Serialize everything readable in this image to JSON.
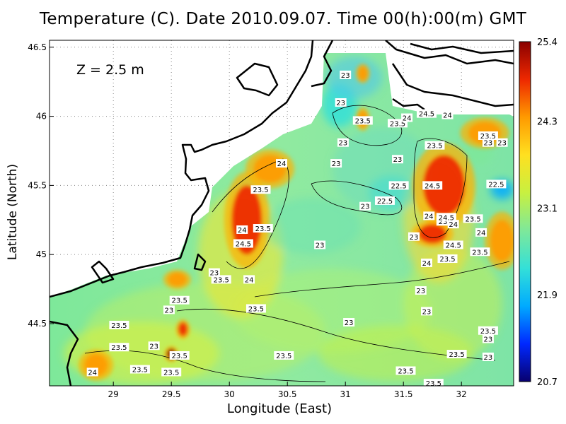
{
  "title": "Temperature (C). Date 2010.09.07. Time 00(h):00(m) GMT",
  "depth_label": "Z = 2.5 m",
  "chart_data": {
    "type": "heatmap",
    "title": "Temperature (C). Date 2010.09.07. Time 00(h):00(m) GMT",
    "xlabel": "Longitude (East)",
    "ylabel": "Latitude (North)",
    "xlim": [
      28.45,
      32.45
    ],
    "ylim": [
      44.05,
      46.55
    ],
    "x_ticks": [
      "29",
      "29.5",
      "30",
      "30.5",
      "31",
      "31.5",
      "32"
    ],
    "x_tick_values": [
      29,
      29.5,
      30,
      30.5,
      31,
      31.5,
      32
    ],
    "y_ticks": [
      "44.5",
      "45",
      "45.5",
      "46",
      "46.5"
    ],
    "y_tick_values": [
      44.5,
      45,
      45.5,
      46,
      46.5
    ],
    "grid": true,
    "colorbar": {
      "labels": [
        "25.4",
        "24.3",
        "23.1",
        "21.9",
        "20.7"
      ],
      "values": [
        25.4,
        24.3,
        23.1,
        21.9,
        20.7
      ],
      "min": 20.7,
      "max": 25.4,
      "colors": [
        "#08006e",
        "#0028ff",
        "#00aaff",
        "#33e0d8",
        "#7ee89a",
        "#c8f040",
        "#ffe020",
        "#ff9a00",
        "#ee2800",
        "#8a0000"
      ]
    },
    "warm_patches": [
      {
        "lon": 31.85,
        "lat": 45.5,
        "value": 24.8,
        "rx": 0.18,
        "ry": 0.22
      },
      {
        "lon": 30.15,
        "lat": 45.25,
        "value": 24.7,
        "rx": 0.13,
        "ry": 0.25
      },
      {
        "lon": 31.75,
        "lat": 45.15,
        "value": 25.0,
        "rx": 0.12,
        "ry": 0.07
      },
      {
        "lon": 30.35,
        "lat": 45.62,
        "value": 24.3,
        "rx": 0.14,
        "ry": 0.1
      },
      {
        "lon": 32.35,
        "lat": 45.1,
        "value": 24.5,
        "rx": 0.1,
        "ry": 0.15
      },
      {
        "lon": 29.6,
        "lat": 44.46,
        "value": 25.1,
        "rx": 0.04,
        "ry": 0.05
      },
      {
        "lon": 29.5,
        "lat": 44.28,
        "value": 25.2,
        "rx": 0.04,
        "ry": 0.04
      },
      {
        "lon": 28.85,
        "lat": 44.2,
        "value": 24.6,
        "rx": 0.1,
        "ry": 0.08
      },
      {
        "lon": 31.15,
        "lat": 45.98,
        "value": 24.6,
        "rx": 0.04,
        "ry": 0.06
      },
      {
        "lon": 31.15,
        "lat": 46.31,
        "value": 24.4,
        "rx": 0.04,
        "ry": 0.05
      },
      {
        "lon": 32.2,
        "lat": 45.88,
        "value": 24.3,
        "rx": 0.14,
        "ry": 0.08
      },
      {
        "lon": 29.55,
        "lat": 44.82,
        "value": 24.2,
        "rx": 0.08,
        "ry": 0.05
      }
    ],
    "cool_patches": [
      {
        "lon": 31.4,
        "lat": 45.45,
        "value": 22.3,
        "rx": 0.2,
        "ry": 0.12
      },
      {
        "lon": 32.35,
        "lat": 45.47,
        "value": 21.7,
        "rx": 0.1,
        "ry": 0.07
      },
      {
        "lon": 30.95,
        "lat": 46.08,
        "value": 22.4,
        "rx": 0.15,
        "ry": 0.16
      },
      {
        "lon": 32.15,
        "lat": 45.75,
        "value": 22.6,
        "rx": 0.12,
        "ry": 0.1
      }
    ],
    "contour_labels": [
      {
        "lon": 31.0,
        "lat": 46.3,
        "text": "23"
      },
      {
        "lon": 30.96,
        "lat": 46.1,
        "text": "23"
      },
      {
        "lon": 31.15,
        "lat": 45.97,
        "text": "23.5"
      },
      {
        "lon": 31.45,
        "lat": 45.95,
        "text": "23.5"
      },
      {
        "lon": 31.53,
        "lat": 45.99,
        "text": "24"
      },
      {
        "lon": 31.7,
        "lat": 46.02,
        "text": "24.5"
      },
      {
        "lon": 31.88,
        "lat": 46.01,
        "text": "24"
      },
      {
        "lon": 31.77,
        "lat": 45.79,
        "text": "23.5"
      },
      {
        "lon": 32.23,
        "lat": 45.86,
        "text": "23.5"
      },
      {
        "lon": 32.23,
        "lat": 45.81,
        "text": "23"
      },
      {
        "lon": 32.35,
        "lat": 45.81,
        "text": "23"
      },
      {
        "lon": 30.98,
        "lat": 45.81,
        "text": "23"
      },
      {
        "lon": 30.92,
        "lat": 45.66,
        "text": "23"
      },
      {
        "lon": 30.45,
        "lat": 45.66,
        "text": "24"
      },
      {
        "lon": 31.45,
        "lat": 45.69,
        "text": "23"
      },
      {
        "lon": 31.75,
        "lat": 45.5,
        "text": "24.5"
      },
      {
        "lon": 31.46,
        "lat": 45.5,
        "text": "22.5"
      },
      {
        "lon": 31.34,
        "lat": 45.39,
        "text": "22.5"
      },
      {
        "lon": 32.3,
        "lat": 45.51,
        "text": "22.5"
      },
      {
        "lon": 30.27,
        "lat": 45.47,
        "text": "23.5"
      },
      {
        "lon": 31.17,
        "lat": 45.35,
        "text": "23"
      },
      {
        "lon": 31.72,
        "lat": 45.28,
        "text": "24"
      },
      {
        "lon": 31.87,
        "lat": 45.24,
        "text": "23.5"
      },
      {
        "lon": 31.93,
        "lat": 45.22,
        "text": "24"
      },
      {
        "lon": 31.87,
        "lat": 45.27,
        "text": "24.5"
      },
      {
        "lon": 32.1,
        "lat": 45.26,
        "text": "23.5"
      },
      {
        "lon": 32.17,
        "lat": 45.16,
        "text": "24"
      },
      {
        "lon": 30.11,
        "lat": 45.18,
        "text": "24"
      },
      {
        "lon": 30.29,
        "lat": 45.19,
        "text": "23.5"
      },
      {
        "lon": 31.59,
        "lat": 45.13,
        "text": "23"
      },
      {
        "lon": 30.12,
        "lat": 45.08,
        "text": "24.5"
      },
      {
        "lon": 30.78,
        "lat": 45.07,
        "text": "23"
      },
      {
        "lon": 31.93,
        "lat": 45.07,
        "text": "24.5"
      },
      {
        "lon": 32.16,
        "lat": 45.02,
        "text": "23.5"
      },
      {
        "lon": 31.88,
        "lat": 44.97,
        "text": "23.5"
      },
      {
        "lon": 31.7,
        "lat": 44.94,
        "text": "24"
      },
      {
        "lon": 29.87,
        "lat": 44.87,
        "text": "23"
      },
      {
        "lon": 29.93,
        "lat": 44.82,
        "text": "23.5"
      },
      {
        "lon": 30.17,
        "lat": 44.82,
        "text": "24"
      },
      {
        "lon": 31.65,
        "lat": 44.74,
        "text": "23"
      },
      {
        "lon": 29.57,
        "lat": 44.67,
        "text": "23.5"
      },
      {
        "lon": 30.23,
        "lat": 44.61,
        "text": "23.5"
      },
      {
        "lon": 29.48,
        "lat": 44.6,
        "text": "23"
      },
      {
        "lon": 31.7,
        "lat": 44.59,
        "text": "23"
      },
      {
        "lon": 31.03,
        "lat": 44.51,
        "text": "23"
      },
      {
        "lon": 29.05,
        "lat": 44.49,
        "text": "23.5"
      },
      {
        "lon": 32.23,
        "lat": 44.45,
        "text": "23.5"
      },
      {
        "lon": 32.23,
        "lat": 44.39,
        "text": "23"
      },
      {
        "lon": 29.05,
        "lat": 44.33,
        "text": "23.5"
      },
      {
        "lon": 29.35,
        "lat": 44.34,
        "text": "23"
      },
      {
        "lon": 29.57,
        "lat": 44.27,
        "text": "23.5"
      },
      {
        "lon": 30.47,
        "lat": 44.27,
        "text": "23.5"
      },
      {
        "lon": 31.96,
        "lat": 44.28,
        "text": "23.5"
      },
      {
        "lon": 32.23,
        "lat": 44.26,
        "text": "23"
      },
      {
        "lon": 28.82,
        "lat": 44.15,
        "text": "24"
      },
      {
        "lon": 29.23,
        "lat": 44.17,
        "text": "23.5"
      },
      {
        "lon": 29.5,
        "lat": 44.15,
        "text": "23.5"
      },
      {
        "lon": 31.52,
        "lat": 44.16,
        "text": "23.5"
      },
      {
        "lon": 31.76,
        "lat": 44.07,
        "text": "23.5"
      }
    ]
  }
}
